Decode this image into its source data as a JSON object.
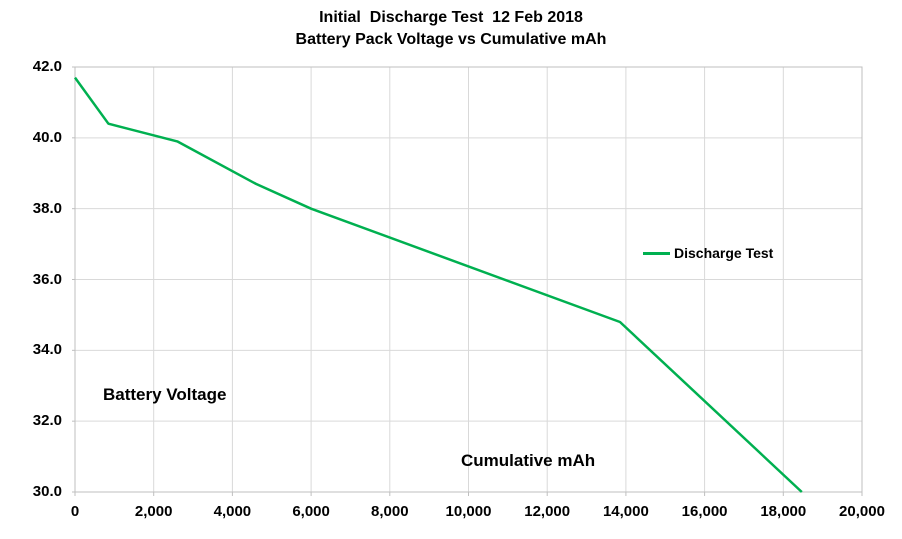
{
  "chart": {
    "title_line1": "Initial  Discharge Test  12 Feb 2018",
    "title_line2": "Battery Pack Voltage vs Cumulative mAh",
    "inner_label_y": "Battery Voltage",
    "inner_label_x": "Cumulative mAh",
    "legend_label": "Discharge Test"
  },
  "chart_data": {
    "type": "line",
    "title": "Initial  Discharge Test  12 Feb 2018",
    "subtitle": "Battery Pack Voltage vs Cumulative mAh",
    "xlabel": "Cumulative mAh",
    "ylabel": "Battery Voltage",
    "xlim": [
      0,
      20000
    ],
    "ylim": [
      30.0,
      42.0
    ],
    "x_ticks": [
      0,
      2000,
      4000,
      6000,
      8000,
      10000,
      12000,
      14000,
      16000,
      18000,
      20000
    ],
    "x_tick_labels": [
      "0",
      "2,000",
      "4,000",
      "6,000",
      "8,000",
      "10,000",
      "12,000",
      "14,000",
      "16,000",
      "18,000",
      "20,000"
    ],
    "y_ticks": [
      30.0,
      32.0,
      34.0,
      36.0,
      38.0,
      40.0,
      42.0
    ],
    "y_tick_labels": [
      "30.0",
      "32.0",
      "34.0",
      "36.0",
      "38.0",
      "40.0",
      "42.0"
    ],
    "grid": true,
    "grid_color": "#d9d9d9",
    "axis_color": "#bfbfbf",
    "legend_position": "inside-right-middle",
    "series": [
      {
        "name": "Discharge Test",
        "color": "#00b050",
        "points": [
          [
            0,
            41.7
          ],
          [
            850,
            40.4
          ],
          [
            2600,
            39.9
          ],
          [
            4600,
            38.7
          ],
          [
            6000,
            38.0
          ],
          [
            13850,
            34.8
          ],
          [
            18470,
            30.0
          ]
        ]
      }
    ]
  }
}
